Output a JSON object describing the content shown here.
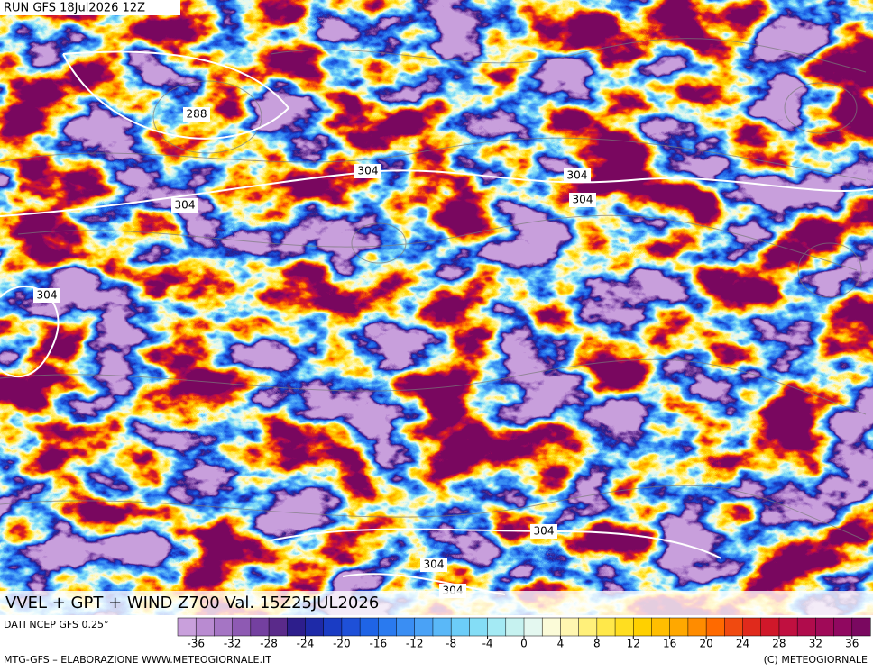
{
  "header": {
    "run": "RUN GFS 18Jul2026 12Z",
    "title": "VVEL + GPT + WIND Z700 Val. 15Z25JUL2026"
  },
  "contour_labels": [
    288,
    304,
    304,
    304,
    304,
    304,
    304,
    304,
    304
  ],
  "legend": {
    "source": "DATI NCEP GFS 0.25°",
    "range": [
      -38,
      38
    ],
    "ticks": [
      -36,
      -32,
      -28,
      -24,
      -20,
      -16,
      -12,
      -8,
      -4,
      0,
      4,
      8,
      12,
      16,
      20,
      24,
      28,
      32,
      36
    ],
    "colors": [
      "#c9a0dc",
      "#b98bd1",
      "#a575c4",
      "#8e5ab3",
      "#7440a0",
      "#5a2a8a",
      "#2d1e8c",
      "#1e2aa8",
      "#1a3cc4",
      "#1e50d8",
      "#1f64e6",
      "#2a7aef",
      "#3a8ef3",
      "#4aa2f6",
      "#5ab8f8",
      "#6ccdf8",
      "#84ddf6",
      "#a4eaf4",
      "#c6f2f0",
      "#e4f8f0",
      "#fbfbd8",
      "#fff6b0",
      "#fff07a",
      "#ffe84a",
      "#ffde20",
      "#ffd000",
      "#ffbe00",
      "#ffa800",
      "#ff8c00",
      "#ff6a00",
      "#f04a10",
      "#e02a1c",
      "#d0182a",
      "#c01040",
      "#b00c4c",
      "#a00a58",
      "#900860",
      "#7a0860"
    ]
  },
  "footer": {
    "left": "MTG-GFS – ELABORAZIONE WWW.METEOGIORNALE.IT",
    "right": "(C) METEOGIORNALE"
  }
}
